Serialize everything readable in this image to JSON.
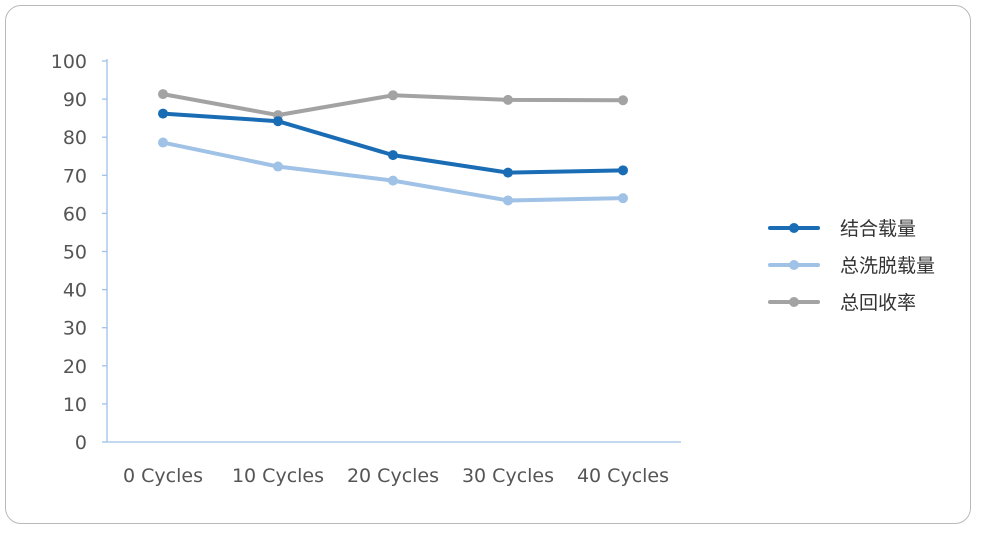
{
  "chart_data": {
    "type": "line",
    "categories": [
      "0 Cycles",
      "10 Cycles",
      "20 Cycles",
      "30 Cycles",
      "40 Cycles"
    ],
    "ylim": [
      0,
      100
    ],
    "yticks": [
      0,
      10,
      20,
      30,
      40,
      50,
      60,
      70,
      80,
      90,
      100
    ],
    "series": [
      {
        "name": "结合载量",
        "color": "#1a6db5",
        "values": [
          86.2,
          84.2,
          75.3,
          70.7,
          71.3
        ]
      },
      {
        "name": "总洗脱载量",
        "color": "#9fc2e6",
        "values": [
          78.6,
          72.3,
          68.6,
          63.4,
          64.0
        ]
      },
      {
        "name": "总回收率",
        "color": "#a3a3a3",
        "values": [
          91.3,
          85.8,
          91.0,
          89.8,
          89.7
        ]
      }
    ],
    "legend_position": "right",
    "grid": false,
    "axis_color": "#9fc2e6"
  }
}
